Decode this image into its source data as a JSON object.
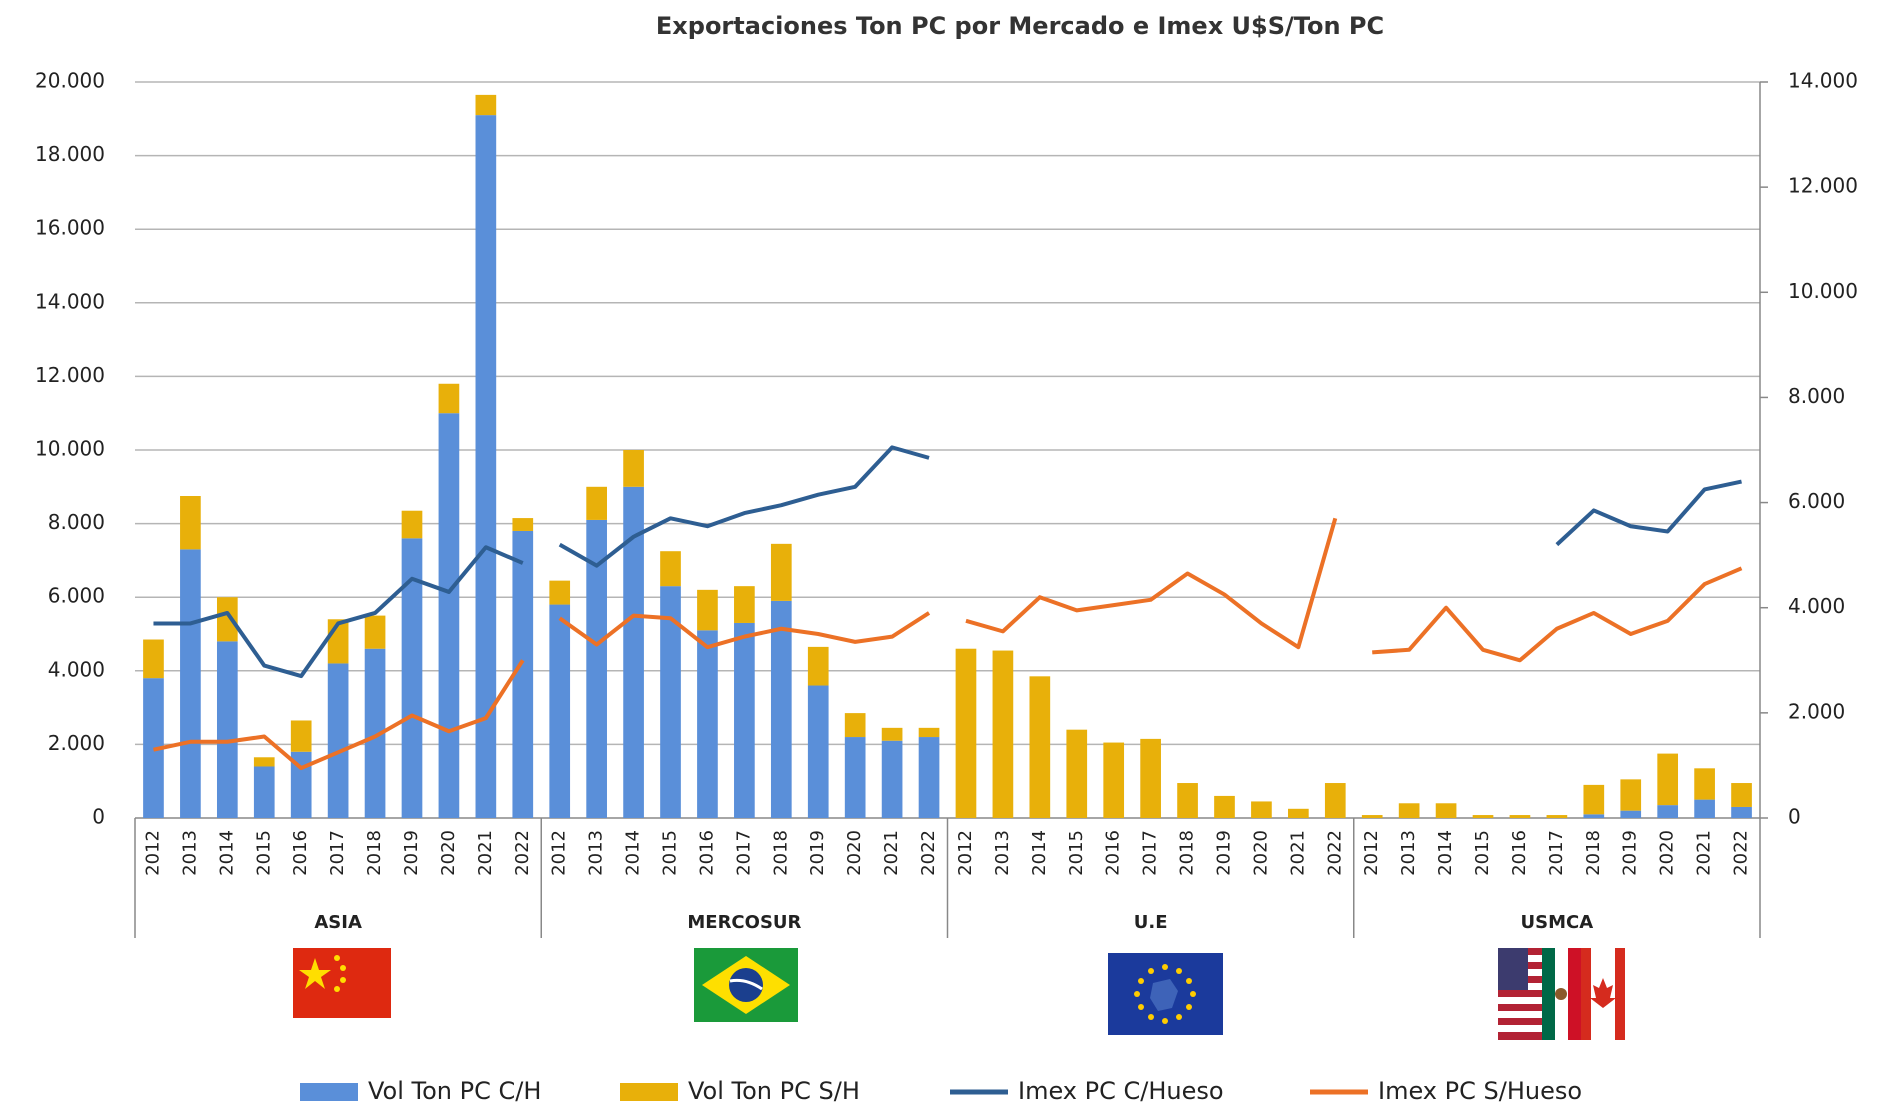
{
  "chart_data": {
    "type": "bar-line",
    "title": "Exportaciones Ton PC por Mercado e Imex U$S/Ton PC",
    "group_labels": [
      "ASIA",
      "MERCOSUR",
      "U.E",
      "USMCA"
    ],
    "categories": [
      "2012",
      "2013",
      "2014",
      "2015",
      "2016",
      "2017",
      "2018",
      "2019",
      "2020",
      "2021",
      "2022",
      "2012",
      "2013",
      "2014",
      "2015",
      "2016",
      "2017",
      "2018",
      "2019",
      "2020",
      "2021",
      "2022",
      "2012",
      "2013",
      "2014",
      "2015",
      "2016",
      "2017",
      "2018",
      "2019",
      "2020",
      "2021",
      "2022",
      "2012",
      "2013",
      "2014",
      "2015",
      "2016",
      "2017",
      "2018",
      "2019",
      "2020",
      "2021",
      "2022"
    ],
    "series": [
      {
        "name": "Vol Ton PC C/H",
        "color": "#5a8fd9",
        "kind": "bar",
        "values": [
          3800,
          7300,
          4800,
          1400,
          1800,
          4200,
          4600,
          7600,
          11000,
          19100,
          7800,
          5800,
          8100,
          9000,
          6300,
          5100,
          5300,
          5900,
          3600,
          2200,
          2100,
          2200,
          0,
          0,
          0,
          0,
          0,
          0,
          0,
          0,
          0,
          0,
          0,
          0,
          0,
          0,
          0,
          0,
          0,
          100,
          200,
          350,
          500,
          300
        ]
      },
      {
        "name": "Vol Ton PC S/H",
        "color": "#e8b00a",
        "kind": "bar",
        "values": [
          1050,
          1450,
          1200,
          250,
          850,
          1200,
          900,
          750,
          800,
          550,
          350,
          650,
          900,
          1000,
          950,
          1100,
          1000,
          1550,
          1050,
          650,
          350,
          250,
          4600,
          4550,
          3850,
          2400,
          2050,
          2150,
          950,
          600,
          450,
          250,
          950,
          80,
          400,
          400,
          80,
          80,
          80,
          800,
          850,
          1400,
          850,
          650
        ]
      },
      {
        "name": "Imex PC C/Hueso",
        "color": "#2e5e92",
        "kind": "line",
        "axis": "y2",
        "values": [
          3700,
          3700,
          3900,
          2900,
          2700,
          3700,
          3900,
          4550,
          4300,
          5150,
          4850,
          5200,
          4800,
          5350,
          5700,
          5550,
          5800,
          5950,
          6150,
          6300,
          7050,
          6850,
          null,
          null,
          null,
          null,
          null,
          null,
          null,
          null,
          null,
          null,
          null,
          null,
          null,
          null,
          null,
          null,
          5200,
          5850,
          5550,
          5450,
          6250,
          6400
        ]
      },
      {
        "name": "Imex PC S/Hueso",
        "color": "#ec7126",
        "kind": "line",
        "axis": "y2",
        "values": [
          1300,
          1450,
          1450,
          1550,
          950,
          1250,
          1550,
          1950,
          1650,
          1900,
          3000,
          3800,
          3300,
          3850,
          3800,
          3250,
          3450,
          3600,
          3500,
          3350,
          3450,
          3900,
          3750,
          3550,
          4200,
          3950,
          4050,
          4150,
          4650,
          4250,
          3700,
          3250,
          5700,
          3150,
          3200,
          4000,
          3200,
          3000,
          3600,
          3900,
          3500,
          3750,
          4450,
          4750
        ]
      }
    ],
    "ylim": [
      0,
      20000
    ],
    "yticks": [
      0,
      {
        "value": 2000,
        "label": "2.000"
      },
      {
        "value": 4000,
        "label": "4.000"
      },
      {
        "value": 6000,
        "label": "6.000"
      },
      {
        "value": 8000,
        "label": "8.000"
      },
      {
        "value": 10000,
        "label": "10.000"
      },
      {
        "value": 12000,
        "label": "12.000"
      },
      {
        "value": 14000,
        "label": "14.000"
      },
      {
        "value": 16000,
        "label": "16.000"
      },
      {
        "value": 18000,
        "label": "18.000"
      },
      {
        "value": 20000,
        "label": "20.000"
      }
    ],
    "y2lim": [
      0,
      14000
    ],
    "y2ticks": [
      0,
      {
        "value": 2000,
        "label": "2.000"
      },
      {
        "value": 4000,
        "label": "4.000"
      },
      {
        "value": 6000,
        "label": "6.000"
      },
      {
        "value": 8000,
        "label": "8.000"
      },
      {
        "value": 10000,
        "label": "10.000"
      },
      {
        "value": 12000,
        "label": "12.000"
      },
      {
        "value": 14000,
        "label": "14.000"
      }
    ],
    "grid": true,
    "legend": "bottom"
  }
}
